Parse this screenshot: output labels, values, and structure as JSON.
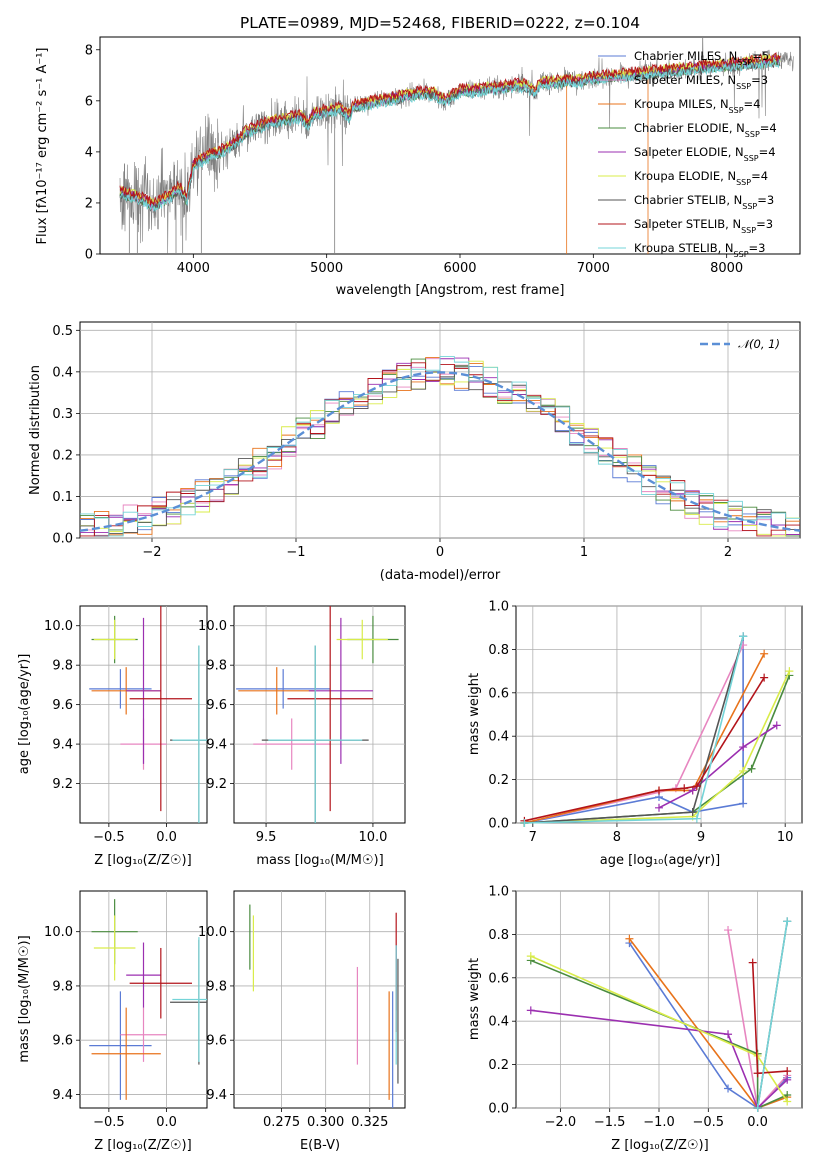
{
  "title": "PLATE=0989, MJD=52468, FIBERID=0222, z=0.104",
  "colors": {
    "chabrier_miles": "#5b7bd5",
    "salpeter_miles": "#e786c0",
    "kroupa_miles": "#e8731b",
    "chabrier_elodie": "#4a8c3f",
    "salpeter_elodie": "#9b2fb0",
    "kroupa_elodie": "#d9ec4a",
    "chabrier_stelib": "#555555",
    "salpeter_stelib": "#b3141b",
    "kroupa_stelib": "#74d4d8",
    "spectrum": "#808080",
    "normal": "#5b8fd6"
  },
  "chart_data": [
    {
      "type": "line",
      "title": "PLATE=0989, MJD=52468, FIBERID=0222, z=0.104",
      "xlabel": "wavelength [Angstrom, rest frame]",
      "ylabel": "Flux [fλ10⁻¹⁷ erg cm⁻² s⁻¹ A⁻¹]",
      "xlim": [
        3300,
        8550
      ],
      "ylim": [
        0,
        8.5
      ],
      "xticks": [
        "4000",
        "5000",
        "6000",
        "7000",
        "8000"
      ],
      "yticks": [
        "0",
        "2",
        "4",
        "6",
        "8"
      ],
      "legend_position": "top-right",
      "legend": [
        "Chabrier MILES, N_SSP=5",
        "Salpeter MILES, N_SSP=3",
        "Kroupa MILES, N_SSP=4",
        "Chabrier ELODIE, N_SSP=4",
        "Salpeter ELODIE, N_SSP=4",
        "Kroupa ELODIE, N_SSP=4",
        "Chabrier STELIB, N_SSP=3",
        "Salpeter STELIB, N_SSP=3",
        "Kroupa STELIB, N_SSP=3"
      ],
      "model_continuum": {
        "x": [
          3450,
          3600,
          3700,
          3800,
          3900,
          3950,
          4000,
          4100,
          4200,
          4300,
          4400,
          4500,
          4600,
          4700,
          4800,
          4860,
          4900,
          5000,
          5100,
          5170,
          5200,
          5300,
          5400,
          5500,
          5600,
          5700,
          5800,
          5890,
          6000,
          6100,
          6200,
          6300,
          6400,
          6500,
          6563,
          6600,
          6700,
          6800,
          6900,
          7000,
          7200,
          7400,
          7600,
          7800,
          8000,
          8200,
          8400,
          8550
        ],
        "y": [
          2.4,
          2.2,
          1.9,
          2.2,
          2.6,
          2.1,
          3.5,
          3.8,
          4.0,
          4.3,
          4.8,
          5.0,
          5.2,
          5.3,
          5.4,
          5.1,
          5.5,
          5.6,
          5.7,
          5.4,
          5.8,
          5.9,
          6.0,
          6.1,
          6.2,
          6.3,
          6.3,
          6.0,
          6.4,
          6.4,
          6.5,
          6.5,
          6.6,
          6.6,
          6.3,
          6.7,
          6.7,
          6.8,
          6.8,
          6.9,
          7.0,
          7.1,
          7.2,
          7.3,
          7.4,
          7.5,
          7.6,
          7.6
        ]
      }
    },
    {
      "type": "line",
      "xlabel": "(data-model)/error",
      "ylabel": "Normed distribution",
      "xlim": [
        -2.5,
        2.5
      ],
      "ylim": [
        0,
        0.52
      ],
      "xticks": [
        "−2",
        "−1",
        "0",
        "1",
        "2"
      ],
      "yticks": [
        "0.0",
        "0.1",
        "0.2",
        "0.3",
        "0.4",
        "0.5"
      ],
      "legend": [
        "𝒩(0, 1)"
      ],
      "legend_position": "top-right",
      "grid": true
    },
    {
      "type": "scatter",
      "xlabel": "Z [log₁₀(Z/Z☉)]",
      "ylabel": "age  [log₁₀(age/yr)]",
      "xlim": [
        -0.75,
        0.35
      ],
      "ylim": [
        9.0,
        10.1
      ],
      "xticks": [
        "−0.5",
        "0.0"
      ],
      "yticks": [
        "9.2",
        "9.4",
        "9.6",
        "9.8",
        "10.0"
      ],
      "grid": true,
      "series": [
        {
          "x": -0.4,
          "y": 9.68,
          "xerr": 0.27,
          "yerr": 0.1
        },
        {
          "x": -0.2,
          "y": 9.4,
          "xerr": 0.2,
          "yerr": 0.13
        },
        {
          "x": -0.35,
          "y": 9.67,
          "xerr": 0.3,
          "yerr": 0.12
        },
        {
          "x": -0.45,
          "y": 9.93,
          "xerr": 0.2,
          "yerr": 0.12
        },
        {
          "x": -0.2,
          "y": 9.67,
          "xerr": 0.15,
          "yerr": 0.37
        },
        {
          "x": -0.45,
          "y": 9.93,
          "xerr": 0.18,
          "yerr": 0.1
        },
        {
          "x": 0.28,
          "y": 9.42,
          "xerr": 0.25,
          "yerr": 0.48
        },
        {
          "x": -0.05,
          "y": 9.63,
          "xerr": 0.27,
          "yerr": 0.57
        },
        {
          "x": 0.28,
          "y": 9.42,
          "xerr": 0.23,
          "yerr": 0.48
        }
      ]
    },
    {
      "type": "scatter",
      "xlabel": "mass [log₁₀(M/M☉)]",
      "xlim": [
        9.35,
        10.15
      ],
      "ylim": [
        9.0,
        10.1
      ],
      "xticks": [
        "9.5",
        "10.0"
      ],
      "yticks": [
        "9.2",
        "9.4",
        "9.6",
        "9.8",
        "10.0"
      ],
      "grid": true,
      "series": [
        {
          "x": 9.58,
          "y": 9.68,
          "xerr": 0.22,
          "yerr": 0.1
        },
        {
          "x": 9.62,
          "y": 9.4,
          "xerr": 0.18,
          "yerr": 0.13
        },
        {
          "x": 9.55,
          "y": 9.67,
          "xerr": 0.18,
          "yerr": 0.12
        },
        {
          "x": 10.0,
          "y": 9.93,
          "xerr": 0.12,
          "yerr": 0.12
        },
        {
          "x": 9.85,
          "y": 9.67,
          "xerr": 0.15,
          "yerr": 0.37
        },
        {
          "x": 9.95,
          "y": 9.93,
          "xerr": 0.12,
          "yerr": 0.1
        },
        {
          "x": 9.73,
          "y": 9.42,
          "xerr": 0.25,
          "yerr": 0.48
        },
        {
          "x": 9.8,
          "y": 9.63,
          "xerr": 0.2,
          "yerr": 0.57
        },
        {
          "x": 9.73,
          "y": 9.42,
          "xerr": 0.22,
          "yerr": 0.48
        }
      ]
    },
    {
      "type": "line",
      "xlabel": "age  [log₁₀(age/yr)]",
      "ylabel": "mass weight",
      "xlim": [
        6.8,
        10.2
      ],
      "ylim": [
        0,
        1.0
      ],
      "xticks": [
        "7",
        "8",
        "9",
        "10"
      ],
      "yticks": [
        "0.0",
        "0.2",
        "0.4",
        "0.6",
        "0.8",
        "1.0"
      ],
      "grid": true,
      "series": [
        {
          "name": "Chabrier MILES",
          "x": [
            6.9,
            8.5,
            8.9,
            9.5,
            9.5
          ],
          "y": [
            0.0,
            0.12,
            0.05,
            0.09,
            0.86
          ]
        },
        {
          "name": "Salpeter MILES",
          "x": [
            6.9,
            8.7,
            9.5
          ],
          "y": [
            0.0,
            0.16,
            0.82
          ]
        },
        {
          "name": "Kroupa MILES",
          "x": [
            6.9,
            8.5,
            8.9,
            9.75
          ],
          "y": [
            0.0,
            0.15,
            0.15,
            0.78
          ]
        },
        {
          "name": "Chabrier ELODIE",
          "x": [
            6.9,
            8.9,
            9.6,
            10.05
          ],
          "y": [
            0.0,
            0.05,
            0.25,
            0.68
          ]
        },
        {
          "name": "Salpeter ELODIE",
          "x": [
            8.5,
            8.9,
            9.5,
            9.9
          ],
          "y": [
            0.07,
            0.15,
            0.35,
            0.45
          ]
        },
        {
          "name": "Kroupa ELODIE",
          "x": [
            6.9,
            8.9,
            9.5,
            10.05
          ],
          "y": [
            0.0,
            0.03,
            0.24,
            0.7
          ]
        },
        {
          "name": "Chabrier STELIB",
          "x": [
            6.9,
            8.9,
            9.5
          ],
          "y": [
            0.0,
            0.05,
            0.86
          ]
        },
        {
          "name": "Salpeter STELIB",
          "x": [
            6.9,
            8.5,
            8.8,
            8.95,
            9.75
          ],
          "y": [
            0.01,
            0.15,
            0.16,
            0.17,
            0.67
          ]
        },
        {
          "name": "Kroupa STELIB",
          "x": [
            6.9,
            8.95,
            9.5
          ],
          "y": [
            0.0,
            0.02,
            0.86
          ]
        }
      ]
    },
    {
      "type": "scatter",
      "xlabel": "Z [log₁₀(Z/Z☉)]",
      "ylabel": "mass [log₁₀(M/M☉)]",
      "xlim": [
        -0.75,
        0.35
      ],
      "ylim": [
        9.35,
        10.15
      ],
      "xticks": [
        "−0.5",
        "0.0"
      ],
      "yticks": [
        "9.4",
        "9.6",
        "9.8",
        "10.0"
      ],
      "grid": true,
      "series": [
        {
          "x": -0.4,
          "y": 9.58,
          "xerr": 0.27,
          "yerr": 0.2
        },
        {
          "x": -0.2,
          "y": 9.62,
          "xerr": 0.2,
          "yerr": 0.1
        },
        {
          "x": -0.35,
          "y": 9.55,
          "xerr": 0.3,
          "yerr": 0.17
        },
        {
          "x": -0.45,
          "y": 10.0,
          "xerr": 0.2,
          "yerr": 0.12
        },
        {
          "x": -0.2,
          "y": 9.84,
          "xerr": 0.15,
          "yerr": 0.12
        },
        {
          "x": -0.45,
          "y": 9.94,
          "xerr": 0.18,
          "yerr": 0.12
        },
        {
          "x": 0.28,
          "y": 9.74,
          "xerr": 0.25,
          "yerr": 0.23
        },
        {
          "x": -0.05,
          "y": 9.81,
          "xerr": 0.27,
          "yerr": 0.13
        },
        {
          "x": 0.28,
          "y": 9.75,
          "xerr": 0.23,
          "yerr": 0.23
        }
      ]
    },
    {
      "type": "scatter",
      "xlabel": "E(B-V)",
      "xlim": [
        0.248,
        0.345
      ],
      "ylim": [
        9.35,
        10.15
      ],
      "xticks": [
        "0.275",
        "0.300",
        "0.325"
      ],
      "yticks": [
        "9.4",
        "9.6",
        "9.8",
        "10.0"
      ],
      "grid": true,
      "series": [
        {
          "x": 0.338,
          "y": 9.56,
          "yerr": 0.22
        },
        {
          "x": 0.318,
          "y": 9.69,
          "yerr": 0.18
        },
        {
          "x": 0.336,
          "y": 9.58,
          "yerr": 0.2
        },
        {
          "x": 0.257,
          "y": 9.98,
          "yerr": 0.12
        },
        {
          "x": 0.34,
          "y": 9.83,
          "yerr": 0.12
        },
        {
          "x": 0.259,
          "y": 9.92,
          "yerr": 0.14
        },
        {
          "x": 0.341,
          "y": 9.67,
          "yerr": 0.23
        },
        {
          "x": 0.34,
          "y": 9.85,
          "yerr": 0.22
        },
        {
          "x": 0.34,
          "y": 9.73,
          "yerr": 0.22
        }
      ]
    },
    {
      "type": "line",
      "xlabel": "Z [log₁₀(Z/Z☉)]",
      "ylabel": "mass weight",
      "xlim": [
        -2.45,
        0.45
      ],
      "ylim": [
        0,
        1.0
      ],
      "xticks": [
        "−2.0",
        "−1.5",
        "−1.0",
        "−0.5",
        "0.0"
      ],
      "yticks": [
        "0.0",
        "0.2",
        "0.4",
        "0.6",
        "0.8",
        "1.0"
      ],
      "grid": true,
      "series": [
        {
          "name": "Chabrier MILES",
          "x": [
            -1.3,
            -0.3,
            0.0,
            0.3
          ],
          "y": [
            0.76,
            0.09,
            0.0,
            0.14
          ]
        },
        {
          "name": "Salpeter MILES",
          "x": [
            -0.3,
            0.0,
            0.3
          ],
          "y": [
            0.82,
            0.0,
            0.15
          ]
        },
        {
          "name": "Kroupa MILES",
          "x": [
            -1.3,
            0.0,
            0.3
          ],
          "y": [
            0.78,
            0.0,
            0.05
          ]
        },
        {
          "name": "Chabrier ELODIE",
          "x": [
            -2.3,
            0.0,
            0.0,
            0.3
          ],
          "y": [
            0.68,
            0.25,
            0.0,
            0.06
          ]
        },
        {
          "name": "Salpeter ELODIE",
          "x": [
            -2.3,
            -0.3,
            0.0,
            0.3
          ],
          "y": [
            0.45,
            0.34,
            0.0,
            0.13
          ]
        },
        {
          "name": "Kroupa ELODIE",
          "x": [
            -2.3,
            0.0,
            0.3
          ],
          "y": [
            0.7,
            0.24,
            0.03
          ]
        },
        {
          "name": "Chabrier STELIB",
          "x": [
            0.0,
            0.3
          ],
          "y": [
            0.0,
            0.86
          ]
        },
        {
          "name": "Salpeter STELIB",
          "x": [
            -0.05,
            0.0,
            0.3
          ],
          "y": [
            0.67,
            0.16,
            0.17
          ]
        },
        {
          "name": "Kroupa STELIB",
          "x": [
            0.0,
            0.3
          ],
          "y": [
            0.0,
            0.86
          ]
        }
      ]
    }
  ]
}
